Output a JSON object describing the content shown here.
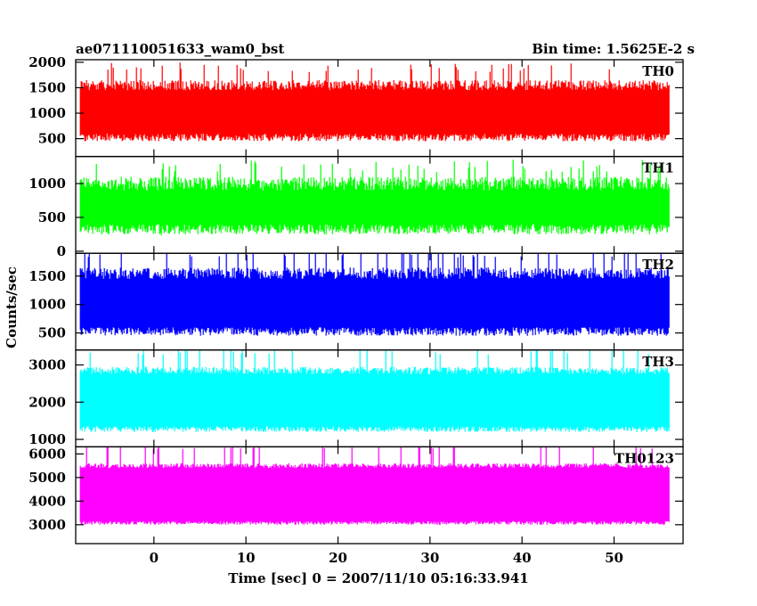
{
  "header": {
    "title": "ae071110051633_wam0_bst",
    "bin_time": "Bin time: 1.5625E-2 s"
  },
  "chart_data": {
    "type": "line",
    "style": "histogram-step",
    "title": "ae071110051633_wam0_bst",
    "subtitle": "Bin time: 1.5625E-2 s",
    "xlabel": "Time [sec] 0 = 2007/11/10 05:16:33.941",
    "ylabel": "Counts/sec",
    "xlim": [
      -8.5,
      57.5
    ],
    "x_ticks": [
      0,
      10,
      20,
      30,
      40,
      50
    ],
    "data_x_range": [
      -8,
      56
    ],
    "panels": [
      {
        "name": "TH0",
        "color": "#ff0000",
        "ylim": [
          150,
          2050
        ],
        "y_ticks": [
          500,
          1000,
          1500,
          2000
        ],
        "typical_min": 450,
        "typical_max": 1650,
        "mean": 1000,
        "spread": 350
      },
      {
        "name": "TH1",
        "color": "#00ff00",
        "ylim": [
          -30,
          1400
        ],
        "y_ticks": [
          0,
          500,
          1000
        ],
        "typical_min": 250,
        "typical_max": 1100,
        "mean": 680,
        "spread": 260
      },
      {
        "name": "TH2",
        "color": "#0000ff",
        "ylim": [
          200,
          1900
        ],
        "y_ticks": [
          500,
          1000,
          1500
        ],
        "typical_min": 450,
        "typical_max": 1650,
        "mean": 1020,
        "spread": 380
      },
      {
        "name": "TH3",
        "color": "#00ffff",
        "ylim": [
          800,
          3400
        ],
        "y_ticks": [
          1000,
          2000,
          3000
        ],
        "typical_min": 1200,
        "typical_max": 2950,
        "mean": 2000,
        "spread": 520
      },
      {
        "name": "TH0123",
        "color": "#ff00ff",
        "ylim": [
          2200,
          6300
        ],
        "y_ticks": [
          3000,
          4000,
          5000,
          6000
        ],
        "typical_min": 3000,
        "typical_max": 5600,
        "mean": 4200,
        "spread": 800
      }
    ],
    "grid": false,
    "legend": "none"
  }
}
